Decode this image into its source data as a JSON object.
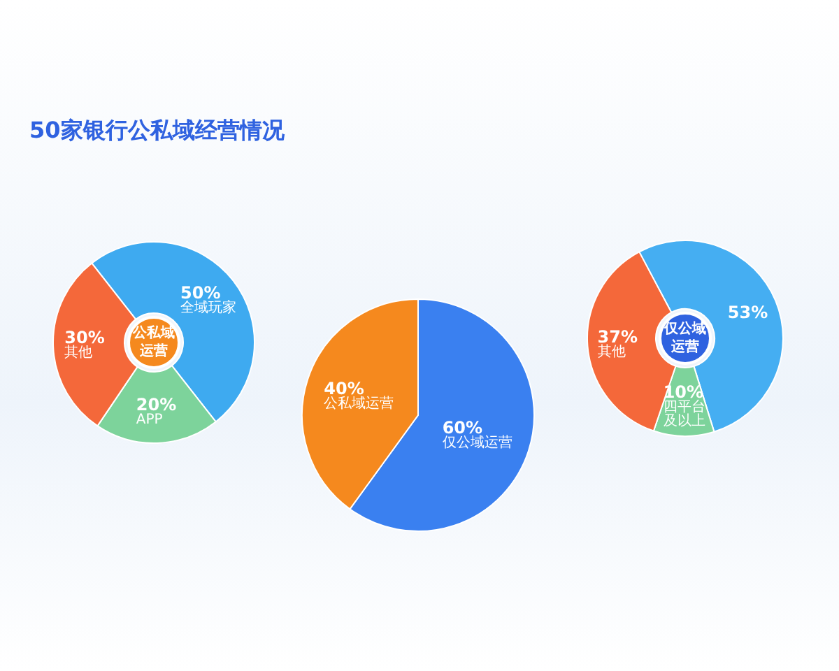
{
  "chart_data": [
    {
      "type": "donut",
      "title": "50家银行公私域经营情况",
      "annotations": [
        "公私域运营"
      ],
      "categories": [
        "全域玩家",
        "APP",
        "其他"
      ],
      "values": [
        50,
        20,
        30
      ],
      "value_labels": [
        "50%",
        "20%",
        "30%"
      ],
      "colors": [
        "#3eaaf0",
        "#7dd39b",
        "#f4683a"
      ]
    },
    {
      "type": "pie",
      "categories": [
        "仅公域运营",
        "公私域运营"
      ],
      "values": [
        60,
        40
      ],
      "value_labels": [
        "60%",
        "40%"
      ],
      "colors": [
        "#3a80f0",
        "#f5891e"
      ]
    },
    {
      "type": "donut",
      "annotations": [
        "仅公域运营"
      ],
      "categories": [
        null,
        "四平台及以上",
        "其他"
      ],
      "values": [
        53,
        10,
        37
      ],
      "value_labels": [
        "53%",
        "10%",
        "37%"
      ],
      "colors": [
        "#45aef2",
        "#7dd39b",
        "#f4683a"
      ]
    }
  ]
}
